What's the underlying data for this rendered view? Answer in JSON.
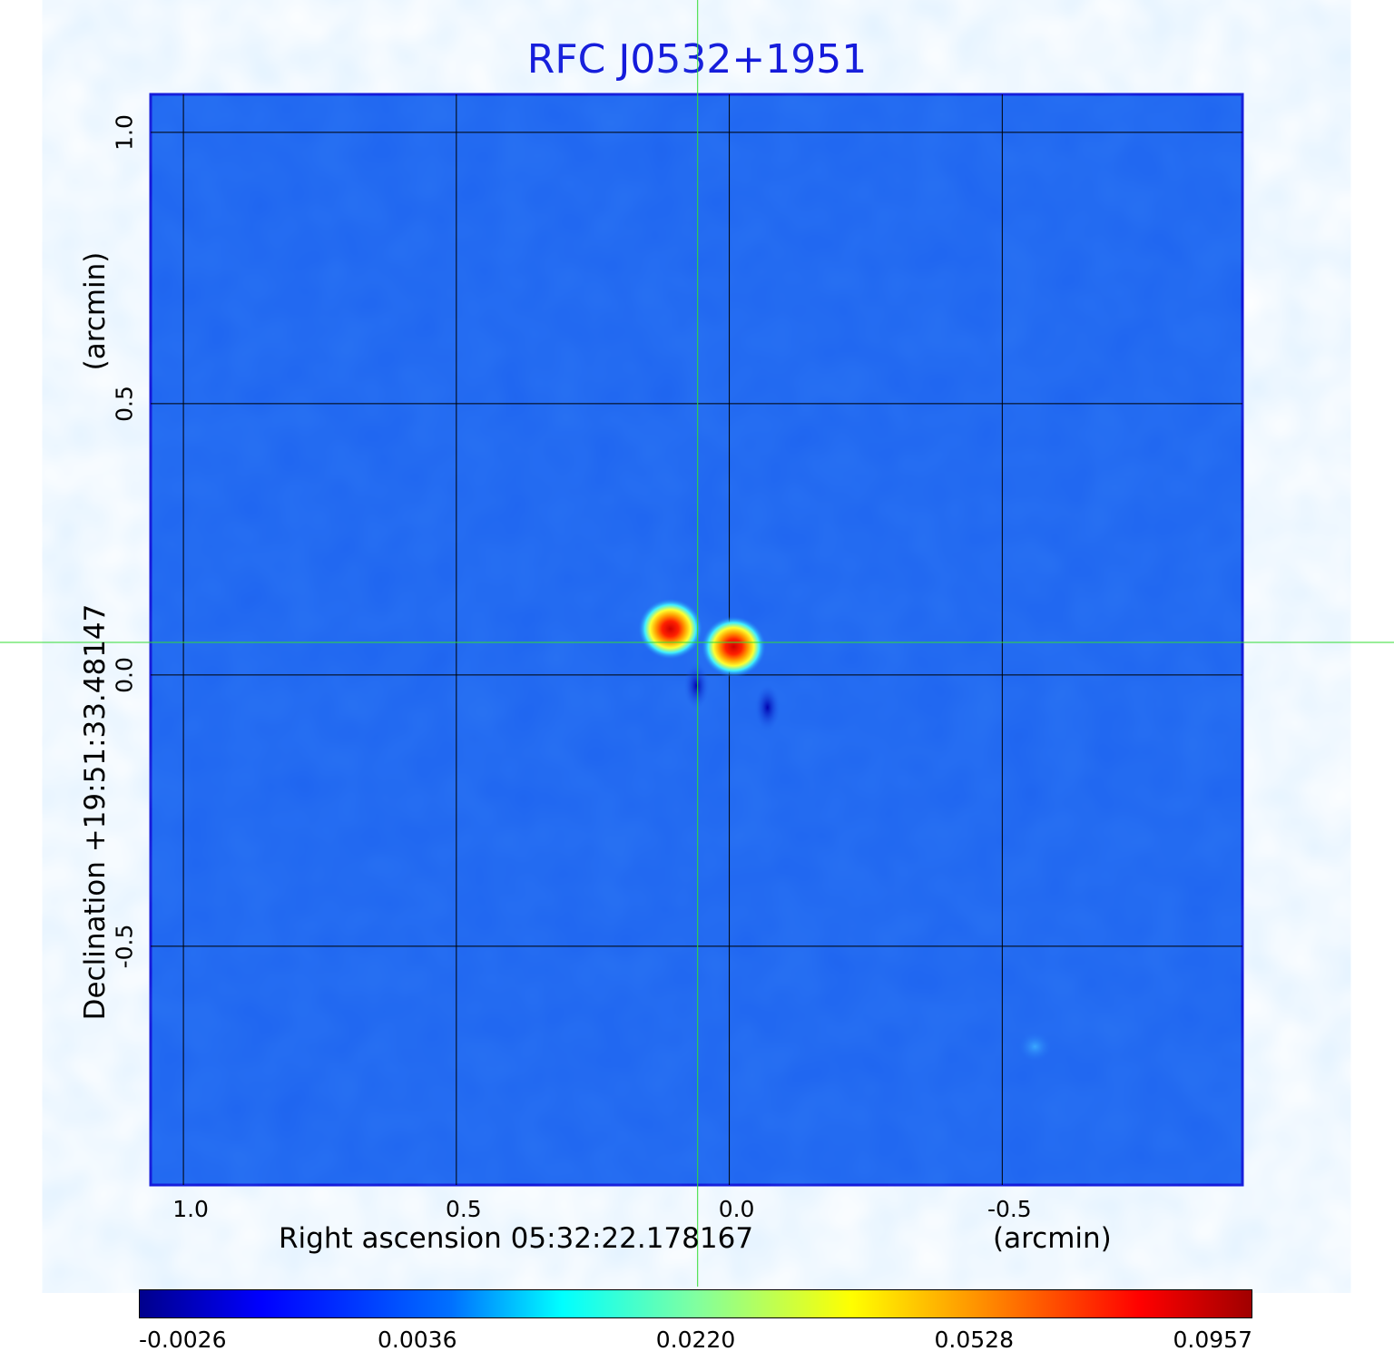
{
  "chart_data": {
    "type": "heatmap",
    "title": "RFC J0532+1951",
    "xlabel": "Right ascension  05:32:22.178167",
    "xlabel_unit": "(arcmin)",
    "ylabel": "Declination  +19:51:33.48147",
    "ylabel_unit": "(arcmin)",
    "x_ticks": [
      "1.0",
      "0.5",
      "0.0",
      "-0.5"
    ],
    "y_ticks": [
      "1.0",
      "0.5",
      "0.0",
      "-0.5"
    ],
    "xlim": [
      1.06,
      -0.94
    ],
    "ylim": [
      -0.94,
      1.07
    ],
    "grid": true,
    "colormap": "jet",
    "background_color": "#1e64f0",
    "crosshair_color": "#33dd33",
    "crosshair": {
      "x": 0.058,
      "y": 0.06
    },
    "sources": [
      {
        "x": 0.108,
        "y": 0.085,
        "value": 0.0957
      },
      {
        "x": -0.008,
        "y": 0.052,
        "value": 0.0957
      },
      {
        "x": -0.56,
        "y": -0.685,
        "value": 0.0036
      }
    ],
    "negative_spots": [
      {
        "x": 0.06,
        "y": -0.02
      },
      {
        "x": -0.07,
        "y": -0.06
      }
    ],
    "colorbar": {
      "ticks": [
        "-0.0026",
        "0.0036",
        "0.0220",
        "0.0528",
        "0.0957"
      ],
      "min": -0.0026,
      "max": 0.0957
    }
  }
}
